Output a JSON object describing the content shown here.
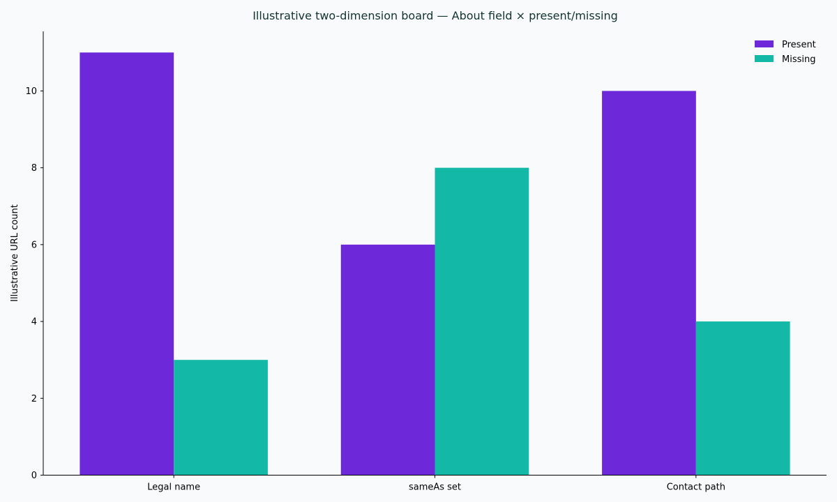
{
  "chart_data": {
    "type": "bar",
    "title": "Illustrative two-dimension board — About field × present/missing",
    "xlabel": "",
    "ylabel": "Illustrative URL count",
    "categories": [
      "Legal name",
      "sameAs set",
      "Contact path"
    ],
    "series": [
      {
        "name": "Present",
        "values": [
          11,
          6,
          10
        ],
        "color": "#6d28d9"
      },
      {
        "name": "Missing",
        "values": [
          3,
          8,
          4
        ],
        "color": "#14b8a6"
      }
    ],
    "ylim": [
      0,
      11.55
    ],
    "yticks": [
      0,
      2,
      4,
      6,
      8,
      10
    ],
    "grid": false,
    "legend": "top-right"
  }
}
